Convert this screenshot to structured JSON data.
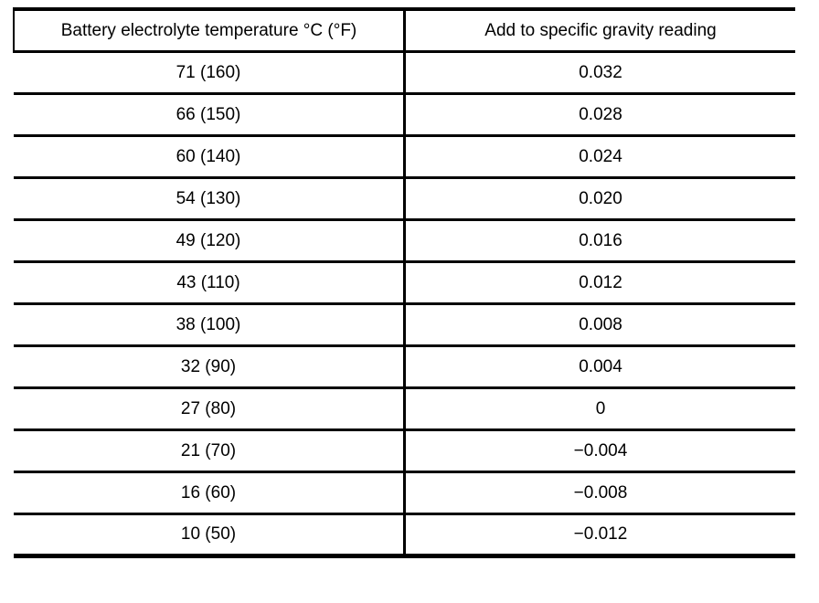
{
  "table": {
    "columns": [
      "Battery electrolyte temperature °C (°F)",
      "Add to specific gravity reading"
    ],
    "rows": [
      [
        "71 (160)",
        "0.032"
      ],
      [
        "66 (150)",
        "0.028"
      ],
      [
        "60 (140)",
        "0.024"
      ],
      [
        "54 (130)",
        "0.020"
      ],
      [
        "49 (120)",
        "0.016"
      ],
      [
        "43 (110)",
        "0.012"
      ],
      [
        "38 (100)",
        "0.008"
      ],
      [
        "32 (90)",
        "0.004"
      ],
      [
        "27 (80)",
        "0"
      ],
      [
        "21 (70)",
        "−0.004"
      ],
      [
        "16 (60)",
        "−0.008"
      ],
      [
        "10 (50)",
        "−0.012"
      ]
    ]
  },
  "colors": {
    "border": "#000000",
    "background": "#ffffff",
    "text": "#000000"
  }
}
